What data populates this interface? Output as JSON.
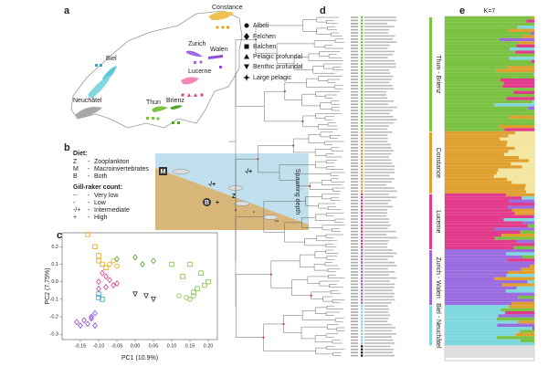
{
  "panel_a": {
    "label": "a",
    "lakes": [
      "Constance",
      "Zurich",
      "Walen",
      "Biel",
      "Lucerne",
      "Neuchâtel",
      "Thun",
      "Brienz"
    ],
    "legend": [
      "Albeli",
      "Felchen",
      "Balchen",
      "Pelagic profundal",
      "Benthic profundal",
      "Large pelagic"
    ]
  },
  "panel_b": {
    "label": "b",
    "diet_title": "Diet:",
    "diet": [
      {
        "code": "Z",
        "sep": "-",
        "text": "Zooplankton"
      },
      {
        "code": "M",
        "sep": "-",
        "text": "Macroinvertebrates"
      },
      {
        "code": "B",
        "sep": "-",
        "text": "Both"
      }
    ],
    "gill_title": "Gill-raker count:",
    "gill": [
      {
        "code": "--",
        "sep": "-",
        "text": "Very low"
      },
      {
        "code": "-",
        "sep": "-",
        "text": "Low"
      },
      {
        "code": "-/+",
        "sep": "-",
        "text": "Intermediate"
      },
      {
        "code": "+",
        "sep": "-",
        "text": "High"
      }
    ],
    "depth_label": "Spawning depth",
    "schematic_labels": [
      "M",
      "-/+",
      "-/+",
      "B",
      "+",
      "Z",
      "-",
      "--"
    ]
  },
  "panel_c": {
    "label": "c",
    "xlabel": "PC1 (10.9%)",
    "ylabel": "PC2 (7.75%)",
    "xlim": [
      -0.2,
      0.225
    ],
    "ylim": [
      -0.33,
      0.28
    ],
    "xticks": [
      -0.15,
      {
        "value": -0.1,
        "label": "-0.10"
      },
      -0.05,
      {
        "value": 0,
        "label": "0.00"
      },
      0.05,
      {
        "value": 0.1,
        "label": "0.10"
      },
      0.15,
      {
        "value": 0.2,
        "label": "0.20"
      }
    ],
    "yticks": [
      0.2,
      0.1,
      {
        "value": 0,
        "label": "0.0"
      },
      -0.1,
      -0.2,
      -0.3
    ],
    "series": [
      {
        "color": "#e8a317",
        "marker": "square",
        "x": [
          -0.13,
          -0.11,
          -0.1,
          -0.1,
          -0.09,
          -0.08
        ],
        "y": [
          0.27,
          0.2,
          0.15,
          0.12,
          0.1,
          0.08
        ]
      },
      {
        "color": "#e8a317",
        "marker": "circle",
        "x": [
          -0.07,
          -0.06,
          -0.05
        ],
        "y": [
          0.1,
          0.12,
          0.09
        ]
      },
      {
        "color": "#5aa02c",
        "marker": "diamond",
        "x": [
          -0.05,
          0.0,
          0.05,
          0.02
        ],
        "y": [
          0.13,
          0.14,
          0.12,
          0.1
        ]
      },
      {
        "color": "#7cc242",
        "marker": "square",
        "x": [
          0.1,
          0.13,
          0.15,
          0.18,
          0.2,
          0.17,
          0.19,
          0.16
        ],
        "y": [
          0.1,
          0.03,
          0.1,
          0.05,
          0.0,
          -0.04,
          -0.02,
          -0.06
        ]
      },
      {
        "color": "#7cc242",
        "marker": "circle",
        "x": [
          0.12,
          0.14,
          0.15,
          0.16
        ],
        "y": [
          -0.08,
          -0.09,
          -0.1,
          -0.08
        ]
      },
      {
        "color": "#e23b8c",
        "marker": "diamond",
        "x": [
          -0.09,
          -0.08,
          -0.1,
          -0.07,
          -0.06,
          -0.1,
          -0.08,
          -0.05
        ],
        "y": [
          0.05,
          0.03,
          0.0,
          0.01,
          -0.02,
          -0.04,
          -0.03,
          -0.01
        ]
      },
      {
        "color": "#8a4fd6",
        "marker": "diamond",
        "x": [
          -0.11,
          -0.12,
          -0.14,
          -0.15,
          -0.13,
          -0.11,
          -0.16,
          -0.12
        ],
        "y": [
          -0.18,
          -0.2,
          -0.22,
          -0.25,
          -0.24,
          -0.25,
          -0.23,
          -0.21
        ]
      },
      {
        "color": "#3aa6c8",
        "marker": "square",
        "x": [
          -0.1,
          -0.09,
          -0.1
        ],
        "y": [
          -0.07,
          -0.1,
          -0.09
        ]
      },
      {
        "color": "#333333",
        "marker": "tridown",
        "x": [
          0.0,
          0.03,
          0.05
        ],
        "y": [
          -0.07,
          -0.08,
          -0.1
        ]
      }
    ]
  },
  "panel_d": {
    "label": "d"
  },
  "panel_e": {
    "label": "e",
    "title": "K=7",
    "groups": [
      {
        "name": "Thun - Brienz",
        "color": "#7cc242"
      },
      {
        "name": "Constance",
        "color": "#e0a030"
      },
      {
        "name": "Lucerne",
        "color": "#e23b8c"
      },
      {
        "name": "Zurich - Walen",
        "color": "#9b6be0"
      },
      {
        "name": "Biel - Neuchâtel",
        "color": "#7fd8e0"
      }
    ]
  }
}
